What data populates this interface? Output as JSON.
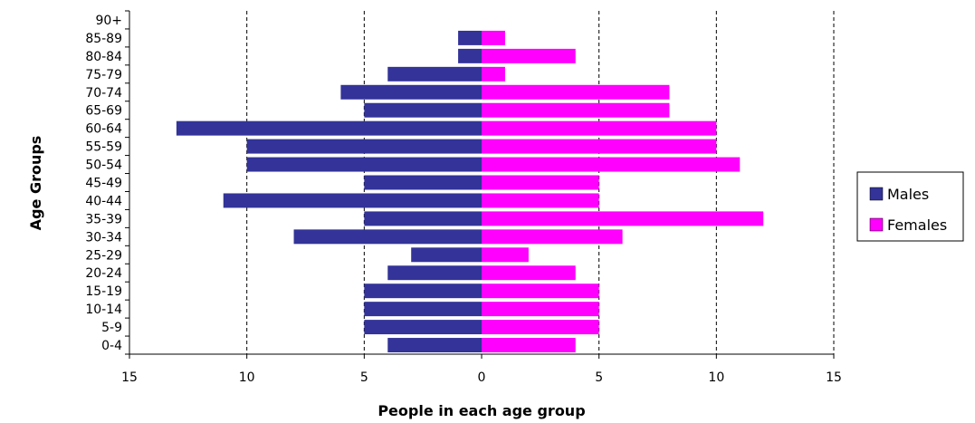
{
  "chart_data": {
    "type": "bar",
    "orientation": "horizontal",
    "style": "population-pyramid",
    "categories": [
      "0-4",
      "5-9",
      "10-14",
      "15-19",
      "20-24",
      "25-29",
      "30-34",
      "35-39",
      "40-44",
      "45-49",
      "50-54",
      "55-59",
      "60-64",
      "65-69",
      "70-74",
      "75-79",
      "80-84",
      "85-89",
      "90+"
    ],
    "series": [
      {
        "name": "Males",
        "color": "#333399",
        "values": [
          4,
          5,
          5,
          5,
          4,
          3,
          8,
          5,
          11,
          5,
          10,
          10,
          13,
          5,
          6,
          4,
          1,
          1,
          0
        ]
      },
      {
        "name": "Females",
        "color": "#ff00ff",
        "values": [
          4,
          5,
          5,
          5,
          4,
          2,
          6,
          12,
          5,
          5,
          11,
          10,
          10,
          8,
          8,
          1,
          4,
          1,
          0
        ]
      }
    ],
    "xlabel": "People in each age group",
    "ylabel": "Age Groups",
    "xlim": [
      -15,
      15
    ],
    "x_ticks": [
      -15,
      -10,
      -5,
      0,
      5,
      10,
      15
    ],
    "x_tick_labels": [
      "15",
      "10",
      "5",
      "0",
      "5",
      "10",
      "15"
    ],
    "grid": "vertical-dashed",
    "legend_position": "right"
  }
}
